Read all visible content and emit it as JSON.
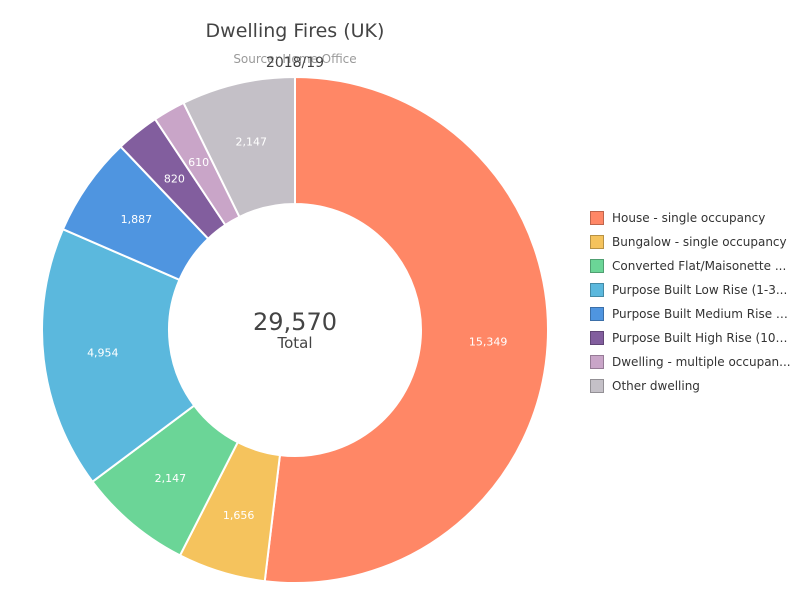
{
  "chart_data": {
    "type": "pie",
    "variant": "donut",
    "title": "Dwelling Fires (UK)",
    "subtitle": "Source: Home Office",
    "period": "2018/19",
    "center": {
      "value": "29,570",
      "label": "Total"
    },
    "categories": [
      "House - single occupancy",
      "Bungalow - single occupancy",
      "Converted Flat/Maisonette ...",
      "Purpose Built Low Rise (1-3...",
      "Purpose Built Medium Rise (...",
      "Purpose Built High Rise (10+...",
      "Dwelling - multiple occupan...",
      "Other dwelling"
    ],
    "values": [
      15349,
      1656,
      2147,
      4954,
      1887,
      820,
      610,
      2147
    ],
    "value_labels": [
      "15,349",
      "1,656",
      "2,147",
      "4,954",
      "1,887",
      "820",
      "610",
      "2,147"
    ],
    "colors": [
      "#FF8766",
      "#F5C35D",
      "#6BD597",
      "#5BB8DD",
      "#4F95E0",
      "#825E9E",
      "#C9A5C8",
      "#C4C0C7"
    ],
    "legend_position": "right"
  }
}
